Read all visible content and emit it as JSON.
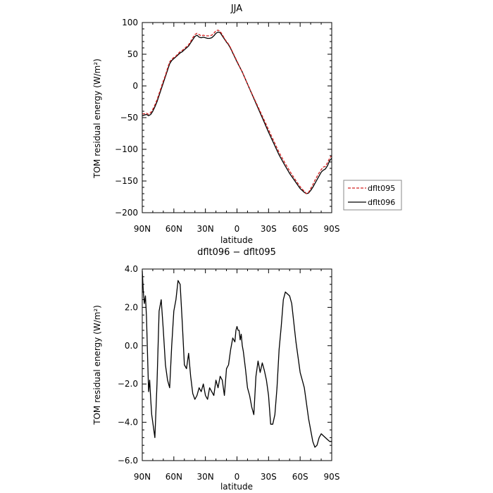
{
  "chart_data": [
    {
      "type": "line",
      "title": "JJA",
      "xlabel": "latitude",
      "ylabel": "TOM residual energy (W/m²)",
      "ylim": [
        -200,
        100
      ],
      "yticks": [
        100,
        50,
        0,
        -50,
        -100,
        -150,
        -200
      ],
      "ytick_labels": [
        "100",
        "50",
        "0",
        "−50",
        "−100",
        "−150",
        "−200"
      ],
      "xlim": [
        90,
        -90
      ],
      "xticks": [
        90,
        60,
        30,
        0,
        -30,
        -60,
        -90
      ],
      "xtick_labels": [
        "90N",
        "60N",
        "30N",
        "0",
        "30S",
        "60S",
        "90S"
      ],
      "legend": "right",
      "x": [
        90,
        88,
        86,
        84,
        82,
        80,
        78,
        76,
        74,
        72,
        70,
        68,
        66,
        64,
        62,
        60,
        58,
        56,
        54,
        52,
        50,
        48,
        46,
        44,
        42,
        40,
        38,
        36,
        34,
        32,
        30,
        28,
        26,
        24,
        22,
        20,
        18,
        16,
        14,
        12,
        10,
        8,
        6,
        4,
        2,
        0,
        -5,
        -10,
        -15,
        -20,
        -25,
        -30,
        -35,
        -40,
        -45,
        -50,
        -55,
        -60,
        -62,
        -64,
        -66,
        -68,
        -70,
        -72,
        -74,
        -76,
        -78,
        -80,
        -82,
        -84,
        -86,
        -88,
        -90
      ],
      "series": [
        {
          "name": "dflt095",
          "color": "#d42020",
          "dash": true,
          "values": [
            -44,
            -44,
            -43,
            -45,
            -42,
            -37,
            -30,
            -22,
            -12,
            -2,
            8,
            17,
            28,
            38,
            42,
            45,
            47,
            51,
            54,
            56,
            59,
            62,
            65,
            70,
            76,
            81,
            83,
            81,
            79,
            80,
            79,
            79,
            79,
            80,
            83,
            87,
            88,
            86,
            81,
            75,
            70,
            66,
            60,
            53,
            46,
            39,
            22,
            3,
            -15,
            -33,
            -51,
            -69,
            -87,
            -105,
            -120,
            -134,
            -147,
            -159,
            -163,
            -166,
            -170,
            -168,
            -162,
            -156,
            -149,
            -143,
            -137,
            -132,
            -128,
            -127,
            -121,
            -114,
            -110
          ]
        },
        {
          "name": "dflt096",
          "color": "#000000",
          "dash": false,
          "values": [
            -47,
            -46,
            -45,
            -47,
            -45,
            -40,
            -33,
            -25,
            -15,
            -5,
            5,
            15,
            25,
            35,
            40,
            43,
            46,
            49,
            52,
            54,
            57,
            60,
            63,
            68,
            73,
            78,
            80,
            77,
            76,
            77,
            76,
            75,
            75,
            76,
            79,
            83,
            85,
            84,
            79,
            74,
            69,
            65,
            59,
            52,
            45,
            38,
            22,
            3,
            -16,
            -35,
            -54,
            -73,
            -91,
            -109,
            -124,
            -138,
            -150,
            -162,
            -165,
            -168,
            -170,
            -169,
            -165,
            -160,
            -154,
            -148,
            -142,
            -136,
            -133,
            -131,
            -126,
            -118,
            -114
          ]
        }
      ]
    },
    {
      "type": "line",
      "title": "dflt096 − dflt095",
      "xlabel": "latitude",
      "ylabel": "TOM residual energy (W/m²)",
      "ylim": [
        -6,
        4
      ],
      "yticks": [
        4,
        2,
        0,
        -2,
        -4,
        -6
      ],
      "ytick_labels": [
        "4.0",
        "2.0",
        "0.0",
        "−2.0",
        "−4.0",
        "−6.0"
      ],
      "xlim": [
        90,
        -90
      ],
      "xticks": [
        90,
        60,
        30,
        0,
        -30,
        -60,
        -90
      ],
      "xtick_labels": [
        "90N",
        "60N",
        "30N",
        "0",
        "30S",
        "60S",
        "90S"
      ],
      "x": [
        90,
        89,
        88,
        87,
        86,
        85,
        84,
        83,
        82,
        81,
        80,
        78,
        76,
        74,
        72,
        70,
        68,
        66,
        64,
        62,
        60,
        58,
        56,
        54,
        52,
        50,
        48,
        46,
        44,
        42,
        40,
        38,
        36,
        34,
        32,
        30,
        28,
        26,
        24,
        22,
        20,
        18,
        16,
        14,
        12,
        10,
        8,
        6,
        4,
        2,
        1,
        0,
        -1,
        -2,
        -3,
        -4,
        -5,
        -6,
        -8,
        -10,
        -12,
        -14,
        -16,
        -18,
        -20,
        -22,
        -24,
        -26,
        -28,
        -30,
        -32,
        -34,
        -36,
        -38,
        -40,
        -42,
        -44,
        -46,
        -48,
        -50,
        -52,
        -54,
        -56,
        -58,
        -60,
        -62,
        -64,
        -66,
        -68,
        -70,
        -72,
        -74,
        -76,
        -78,
        -80,
        -82,
        -84,
        -86,
        -88,
        -90
      ],
      "series": [
        {
          "name": "",
          "color": "#000000",
          "dash": false,
          "values": [
            3.9,
            2.8,
            2.2,
            2.6,
            1.5,
            -0.5,
            -2.4,
            -1.8,
            -2.8,
            -3.6,
            -4.0,
            -4.8,
            -2.0,
            1.8,
            2.4,
            0.8,
            -1.0,
            -1.8,
            -2.2,
            0.0,
            1.8,
            2.4,
            3.4,
            3.2,
            1.2,
            -1.0,
            -1.2,
            -0.4,
            -1.6,
            -2.5,
            -2.8,
            -2.6,
            -2.2,
            -2.4,
            -2.0,
            -2.6,
            -2.8,
            -2.2,
            -2.4,
            -2.6,
            -1.8,
            -2.2,
            -1.6,
            -1.8,
            -2.6,
            -1.2,
            -1.0,
            -0.2,
            0.4,
            0.2,
            0.8,
            1.0,
            0.8,
            0.8,
            0.3,
            0.6,
            0.0,
            -0.3,
            -1.2,
            -2.2,
            -2.6,
            -3.2,
            -3.6,
            -1.6,
            -0.8,
            -1.4,
            -0.9,
            -1.3,
            -1.8,
            -2.6,
            -4.1,
            -4.1,
            -3.6,
            -2.2,
            -0.2,
            1.0,
            2.4,
            2.8,
            2.7,
            2.6,
            2.2,
            1.2,
            0.2,
            -0.6,
            -1.4,
            -1.8,
            -2.2,
            -3.0,
            -3.8,
            -4.4,
            -5.0,
            -5.3,
            -5.2,
            -4.8,
            -4.6,
            -4.7,
            -4.8,
            -4.9,
            -5.0,
            -5.0
          ]
        }
      ]
    }
  ]
}
